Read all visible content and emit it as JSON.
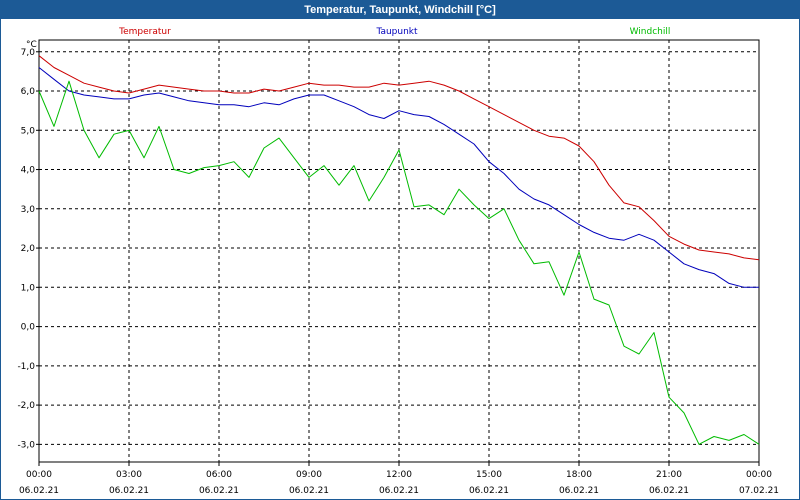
{
  "title": "Temperatur, Taupunkt, Windchill [°C]",
  "chart_data": {
    "type": "line",
    "title": "Temperatur, Taupunkt, Windchill [°C]",
    "ylabel": "°C",
    "xlabel": "",
    "ylim": [
      -3.45,
      7.3
    ],
    "xlim": [
      0,
      24
    ],
    "grid": true,
    "legend_position": "top",
    "y_ticks": [
      {
        "value": 7,
        "label": "7,0"
      },
      {
        "value": 6,
        "label": "6,0"
      },
      {
        "value": 5,
        "label": "5,0"
      },
      {
        "value": 4,
        "label": "4,0"
      },
      {
        "value": 3,
        "label": "3,0"
      },
      {
        "value": 2,
        "label": "2,0"
      },
      {
        "value": 1,
        "label": "1,0"
      },
      {
        "value": 0,
        "label": "0,0"
      },
      {
        "value": -1,
        "label": "-1,0"
      },
      {
        "value": -2,
        "label": "-2,0"
      },
      {
        "value": -3,
        "label": "-3,0"
      }
    ],
    "x_ticks": [
      {
        "value": 0,
        "time": "00:00",
        "date": "06.02.21"
      },
      {
        "value": 3,
        "time": "03:00",
        "date": "06.02.21"
      },
      {
        "value": 6,
        "time": "06:00",
        "date": "06.02.21"
      },
      {
        "value": 9,
        "time": "09:00",
        "date": "06.02.21"
      },
      {
        "value": 12,
        "time": "12:00",
        "date": "06.02.21"
      },
      {
        "value": 15,
        "time": "15:00",
        "date": "06.02.21"
      },
      {
        "value": 18,
        "time": "18:00",
        "date": "06.02.21"
      },
      {
        "value": 21,
        "time": "21:00",
        "date": "06.02.21"
      },
      {
        "value": 24,
        "time": "00:00",
        "date": "07.02.21"
      }
    ],
    "x": [
      0,
      0.5,
      1,
      1.5,
      2,
      2.5,
      3,
      3.5,
      4,
      4.5,
      5,
      5.5,
      6,
      6.5,
      7,
      7.5,
      8,
      8.5,
      9,
      9.5,
      10,
      10.5,
      11,
      11.5,
      12,
      12.5,
      13,
      13.5,
      14,
      14.5,
      15,
      15.5,
      16,
      16.5,
      17,
      17.5,
      18,
      18.5,
      19,
      19.5,
      20,
      20.5,
      21,
      21.5,
      22,
      22.5,
      23,
      23.5,
      24
    ],
    "series": [
      {
        "name": "Temperatur",
        "color": "#cc0000",
        "values": [
          6.9,
          6.6,
          6.4,
          6.2,
          6.1,
          6.0,
          5.95,
          6.05,
          6.15,
          6.1,
          6.05,
          6.0,
          6.0,
          5.95,
          5.95,
          6.05,
          6.0,
          6.1,
          6.2,
          6.15,
          6.15,
          6.1,
          6.1,
          6.2,
          6.15,
          6.2,
          6.25,
          6.15,
          6.0,
          5.8,
          5.6,
          5.4,
          5.2,
          5.0,
          4.85,
          4.8,
          4.6,
          4.2,
          3.6,
          3.15,
          3.05,
          2.7,
          2.3,
          2.1,
          1.95,
          1.9,
          1.85,
          1.75,
          1.7
        ]
      },
      {
        "name": "Taupunkt",
        "color": "#0000bb",
        "values": [
          6.6,
          6.3,
          6.0,
          5.9,
          5.85,
          5.8,
          5.8,
          5.9,
          5.95,
          5.85,
          5.75,
          5.7,
          5.65,
          5.65,
          5.6,
          5.7,
          5.65,
          5.8,
          5.9,
          5.9,
          5.75,
          5.6,
          5.4,
          5.3,
          5.5,
          5.4,
          5.35,
          5.15,
          4.9,
          4.65,
          4.2,
          3.9,
          3.5,
          3.25,
          3.1,
          2.85,
          2.6,
          2.4,
          2.25,
          2.2,
          2.35,
          2.2,
          1.9,
          1.6,
          1.45,
          1.35,
          1.1,
          1.0,
          1.0
        ]
      },
      {
        "name": "Windchill",
        "color": "#00bb00",
        "values": [
          6.0,
          5.1,
          6.25,
          5.0,
          4.3,
          4.9,
          5.0,
          4.3,
          5.1,
          4.0,
          3.9,
          4.05,
          4.1,
          4.2,
          3.8,
          4.55,
          4.8,
          4.3,
          3.8,
          4.1,
          3.6,
          4.1,
          3.2,
          3.8,
          4.5,
          3.05,
          3.1,
          2.85,
          3.5,
          3.1,
          2.75,
          3.0,
          2.2,
          1.6,
          1.65,
          0.8,
          1.9,
          0.7,
          0.55,
          -0.5,
          -0.7,
          -0.15,
          -1.8,
          -2.2,
          -3.0,
          -2.8,
          -2.9,
          -2.75,
          -3.0
        ]
      }
    ]
  }
}
